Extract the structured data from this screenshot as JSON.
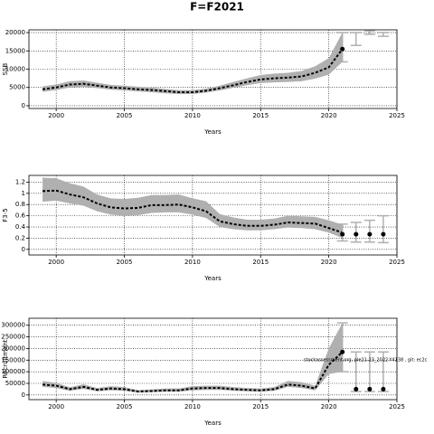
{
  "title": "F=F2021",
  "chart_data": [
    {
      "type": "line",
      "ylabel": "SSB",
      "xlabel": "Years",
      "color": "#000000",
      "band_color": "#b0b0b0",
      "bar_color": "#b0b0b0",
      "grid": true,
      "x": [
        1999,
        2000,
        2001,
        2002,
        2003,
        2004,
        2005,
        2006,
        2007,
        2008,
        2009,
        2010,
        2011,
        2012,
        2013,
        2014,
        2015,
        2016,
        2017,
        2018,
        2019,
        2020,
        2021
      ],
      "values": [
        4500,
        5000,
        5800,
        6000,
        5500,
        5000,
        4800,
        4500,
        4300,
        4000,
        3700,
        3700,
        4100,
        4800,
        5600,
        6500,
        7200,
        7500,
        7700,
        8000,
        9000,
        10500,
        15500
      ],
      "lower": [
        3800,
        4300,
        5000,
        5200,
        4800,
        4400,
        4200,
        3900,
        3700,
        3400,
        3200,
        3200,
        3600,
        4200,
        4900,
        5600,
        6200,
        6400,
        6500,
        6700,
        7400,
        8500,
        12000
      ],
      "upper": [
        5300,
        5800,
        6700,
        6900,
        6300,
        5700,
        5500,
        5200,
        5000,
        4600,
        4300,
        4300,
        4700,
        5500,
        6500,
        7500,
        8400,
        8800,
        9000,
        9500,
        10800,
        13000,
        20000
      ],
      "proj_x": [
        2021,
        2022,
        2023,
        2024
      ],
      "proj_values": [
        15500,
        null,
        null,
        null
      ],
      "proj_low": [
        12000,
        16500,
        19500,
        19000
      ],
      "proj_high": [
        20000,
        20000,
        20500,
        20000
      ],
      "xlim": [
        1998,
        2025
      ],
      "xticks": [
        2000,
        2005,
        2010,
        2015,
        2020,
        2025
      ],
      "ylim": [
        -750,
        20750
      ],
      "yticks": [
        0,
        5000,
        10000,
        15000,
        20000
      ]
    },
    {
      "type": "line",
      "ylabel": "F3-5",
      "xlabel": "Years",
      "color": "#000000",
      "band_color": "#b0b0b0",
      "bar_color": "#b0b0b0",
      "grid": true,
      "x": [
        1999,
        2000,
        2001,
        2002,
        2003,
        2004,
        2005,
        2006,
        2007,
        2008,
        2009,
        2010,
        2011,
        2012,
        2013,
        2014,
        2015,
        2016,
        2017,
        2018,
        2019,
        2020,
        2021
      ],
      "values": [
        1.04,
        1.05,
        0.98,
        0.93,
        0.82,
        0.75,
        0.73,
        0.74,
        0.79,
        0.79,
        0.8,
        0.75,
        0.68,
        0.5,
        0.45,
        0.42,
        0.42,
        0.44,
        0.48,
        0.47,
        0.46,
        0.38,
        0.3
      ],
      "lower": [
        0.85,
        0.87,
        0.82,
        0.78,
        0.68,
        0.62,
        0.6,
        0.61,
        0.65,
        0.66,
        0.66,
        0.62,
        0.56,
        0.4,
        0.36,
        0.34,
        0.34,
        0.36,
        0.39,
        0.38,
        0.36,
        0.3,
        0.2
      ],
      "upper": [
        1.28,
        1.27,
        1.18,
        1.12,
        0.98,
        0.91,
        0.9,
        0.92,
        0.97,
        0.97,
        0.98,
        0.91,
        0.86,
        0.63,
        0.57,
        0.53,
        0.53,
        0.55,
        0.6,
        0.59,
        0.58,
        0.52,
        0.44
      ],
      "proj_x": [
        2021,
        2022,
        2023,
        2024
      ],
      "proj_values": [
        0.27,
        0.27,
        0.27,
        0.27
      ],
      "proj_low": [
        0.15,
        0.13,
        0.13,
        0.12
      ],
      "proj_high": [
        0.45,
        0.48,
        0.52,
        0.6
      ],
      "xlim": [
        1998,
        2025
      ],
      "xticks": [
        2000,
        2005,
        2010,
        2015,
        2020,
        2025
      ],
      "ylim": [
        -0.1,
        1.32
      ],
      "yticks": [
        0,
        0.2,
        0.4,
        0.6,
        0.8,
        1,
        1.2
      ]
    },
    {
      "type": "line",
      "ylabel": "Recruitment",
      "xlabel": "Years",
      "color": "#000000",
      "band_color": "#b0b0b0",
      "bar_color": "#b0b0b0",
      "grid": true,
      "x": [
        1999,
        2000,
        2001,
        2002,
        2003,
        2004,
        2005,
        2006,
        2007,
        2008,
        2009,
        2010,
        2011,
        2012,
        2013,
        2014,
        2015,
        2016,
        2017,
        2018,
        2019,
        2020,
        2021
      ],
      "values": [
        45000,
        40000,
        25000,
        35000,
        22000,
        28000,
        25000,
        15000,
        17000,
        20000,
        20000,
        28000,
        30000,
        30000,
        25000,
        22000,
        20000,
        25000,
        45000,
        40000,
        28000,
        130000,
        185000
      ],
      "lower": [
        35000,
        30000,
        18000,
        26000,
        16000,
        20000,
        18000,
        10000,
        12000,
        14000,
        14000,
        20000,
        22000,
        22000,
        18000,
        16000,
        14000,
        18000,
        35000,
        30000,
        20000,
        90000,
        100000
      ],
      "upper": [
        60000,
        52000,
        33000,
        46000,
        30000,
        38000,
        34000,
        21000,
        24000,
        28000,
        28000,
        38000,
        40000,
        40000,
        34000,
        30000,
        28000,
        34000,
        60000,
        55000,
        40000,
        200000,
        310000
      ],
      "proj_x": [
        2021,
        2022,
        2023,
        2024
      ],
      "proj_values": [
        185000,
        25000,
        25000,
        25000
      ],
      "proj_low": [
        100000,
        15000,
        15000,
        15000
      ],
      "proj_high": [
        310000,
        185000,
        185000,
        185000
      ],
      "xlim": [
        1998,
        2025
      ],
      "xticks": [
        2000,
        2005,
        2010,
        2015,
        2020,
        2025
      ],
      "ylim": [
        -20000,
        330000
      ],
      "yticks": [
        0,
        50000,
        100000,
        150000,
        200000,
        250000,
        300000
      ],
      "annotation": "stockassessment.org, ple21-23_2022-Y4138 , git: ec2c"
    }
  ]
}
